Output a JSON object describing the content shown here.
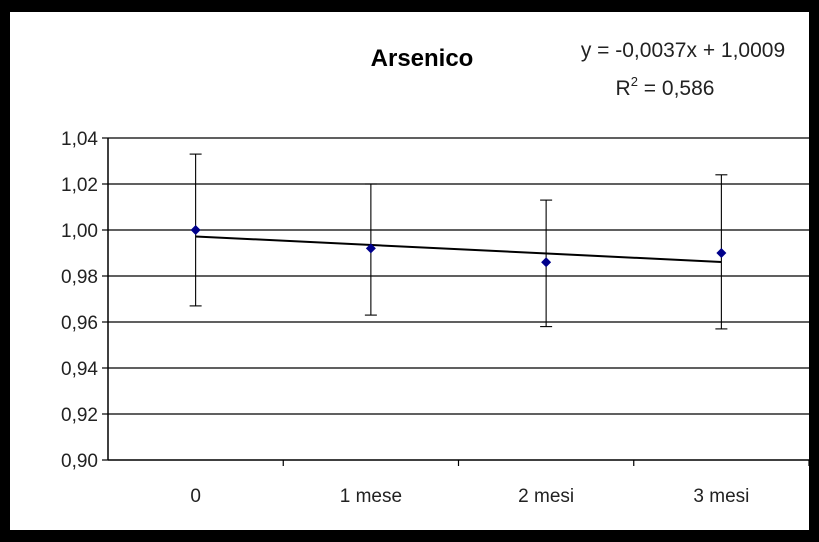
{
  "chart_data": {
    "type": "scatter",
    "title": "Arsenico",
    "xlabel": "",
    "ylabel": "",
    "categories": [
      "0",
      "1 mese",
      "2 mesi",
      "3 mesi"
    ],
    "ylim": [
      0.9,
      1.04
    ],
    "yticks": [
      0.9,
      0.92,
      0.94,
      0.96,
      0.98,
      1.0,
      1.02,
      1.04
    ],
    "ytick_labels": [
      "0,90",
      "0,92",
      "0,94",
      "0,96",
      "0,98",
      "1,00",
      "1,02",
      "1,04"
    ],
    "grid": true,
    "marker_color": "#00008b",
    "points": [
      {
        "x": "0",
        "y": 1.0,
        "err_low": 0.967,
        "err_high": 1.033
      },
      {
        "x": "1 mese",
        "y": 0.992,
        "err_low": 0.963,
        "err_high": 1.02
      },
      {
        "x": "2 mesi",
        "y": 0.986,
        "err_low": 0.958,
        "err_high": 1.013
      },
      {
        "x": "3 mesi",
        "y": 0.99,
        "err_low": 0.957,
        "err_high": 1.024
      }
    ],
    "trendline": {
      "equation": "y = -0,0037x + 1,0009",
      "r2_label": "R",
      "r2_sup": "2",
      "r2_value": " = 0,586",
      "slope": -0.0037,
      "intercept": 1.0009
    }
  }
}
